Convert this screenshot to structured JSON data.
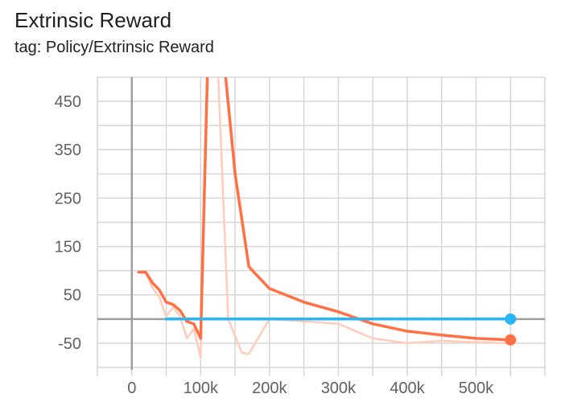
{
  "header": {
    "title": "Extrinsic Reward",
    "subtitle": "tag: Policy/Extrinsic Reward"
  },
  "chart_data": {
    "type": "line",
    "title": "Extrinsic Reward",
    "subtitle": "tag: Policy/Extrinsic Reward",
    "xlabel": "",
    "ylabel": "",
    "xlim": [
      -50000,
      600000
    ],
    "ylim": [
      -105,
      500
    ],
    "grid": true,
    "x_ticks": [
      {
        "value": 0,
        "label": "0"
      },
      {
        "value": 100000,
        "label": "100k"
      },
      {
        "value": 200000,
        "label": "200k"
      },
      {
        "value": 300000,
        "label": "300k"
      },
      {
        "value": 400000,
        "label": "400k"
      },
      {
        "value": 500000,
        "label": "500k"
      }
    ],
    "y_ticks": [
      {
        "value": 450,
        "label": "450"
      },
      {
        "value": 350,
        "label": "350"
      },
      {
        "value": 250,
        "label": "250"
      },
      {
        "value": 150,
        "label": "150"
      },
      {
        "value": 50,
        "label": "50"
      },
      {
        "value": -50,
        "label": "-50"
      }
    ],
    "series": [
      {
        "color": "#ff7043",
        "raw_color": "#ffccbc",
        "points": [
          [
            10000,
            97
          ],
          [
            20000,
            97
          ],
          [
            30000,
            75
          ],
          [
            40000,
            60
          ],
          [
            50000,
            35
          ],
          [
            60000,
            30
          ],
          [
            70000,
            18
          ],
          [
            80000,
            -5
          ],
          [
            90000,
            -10
          ],
          [
            100000,
            -40
          ],
          [
            110000,
            520
          ],
          [
            135000,
            520
          ],
          [
            150000,
            300
          ],
          [
            170000,
            108
          ],
          [
            200000,
            63
          ],
          [
            250000,
            35
          ],
          [
            300000,
            15
          ],
          [
            350000,
            -10
          ],
          [
            400000,
            -25
          ],
          [
            450000,
            -33
          ],
          [
            500000,
            -40
          ],
          [
            550000,
            -43
          ]
        ],
        "raw_points": [
          [
            10000,
            97
          ],
          [
            20000,
            97
          ],
          [
            30000,
            65
          ],
          [
            40000,
            45
          ],
          [
            50000,
            5
          ],
          [
            60000,
            25
          ],
          [
            70000,
            5
          ],
          [
            80000,
            -40
          ],
          [
            90000,
            -20
          ],
          [
            100000,
            -80
          ],
          [
            110000,
            520
          ],
          [
            125000,
            520
          ],
          [
            140000,
            0
          ],
          [
            160000,
            -70
          ],
          [
            170000,
            -72
          ],
          [
            200000,
            0
          ],
          [
            250000,
            -5
          ],
          [
            300000,
            -10
          ],
          [
            350000,
            -40
          ],
          [
            400000,
            -50
          ],
          [
            450000,
            -45
          ],
          [
            500000,
            -48
          ],
          [
            550000,
            -50
          ]
        ]
      },
      {
        "color": "#29b6f6",
        "points": [
          [
            50000,
            0
          ],
          [
            550000,
            0
          ]
        ]
      }
    ]
  }
}
